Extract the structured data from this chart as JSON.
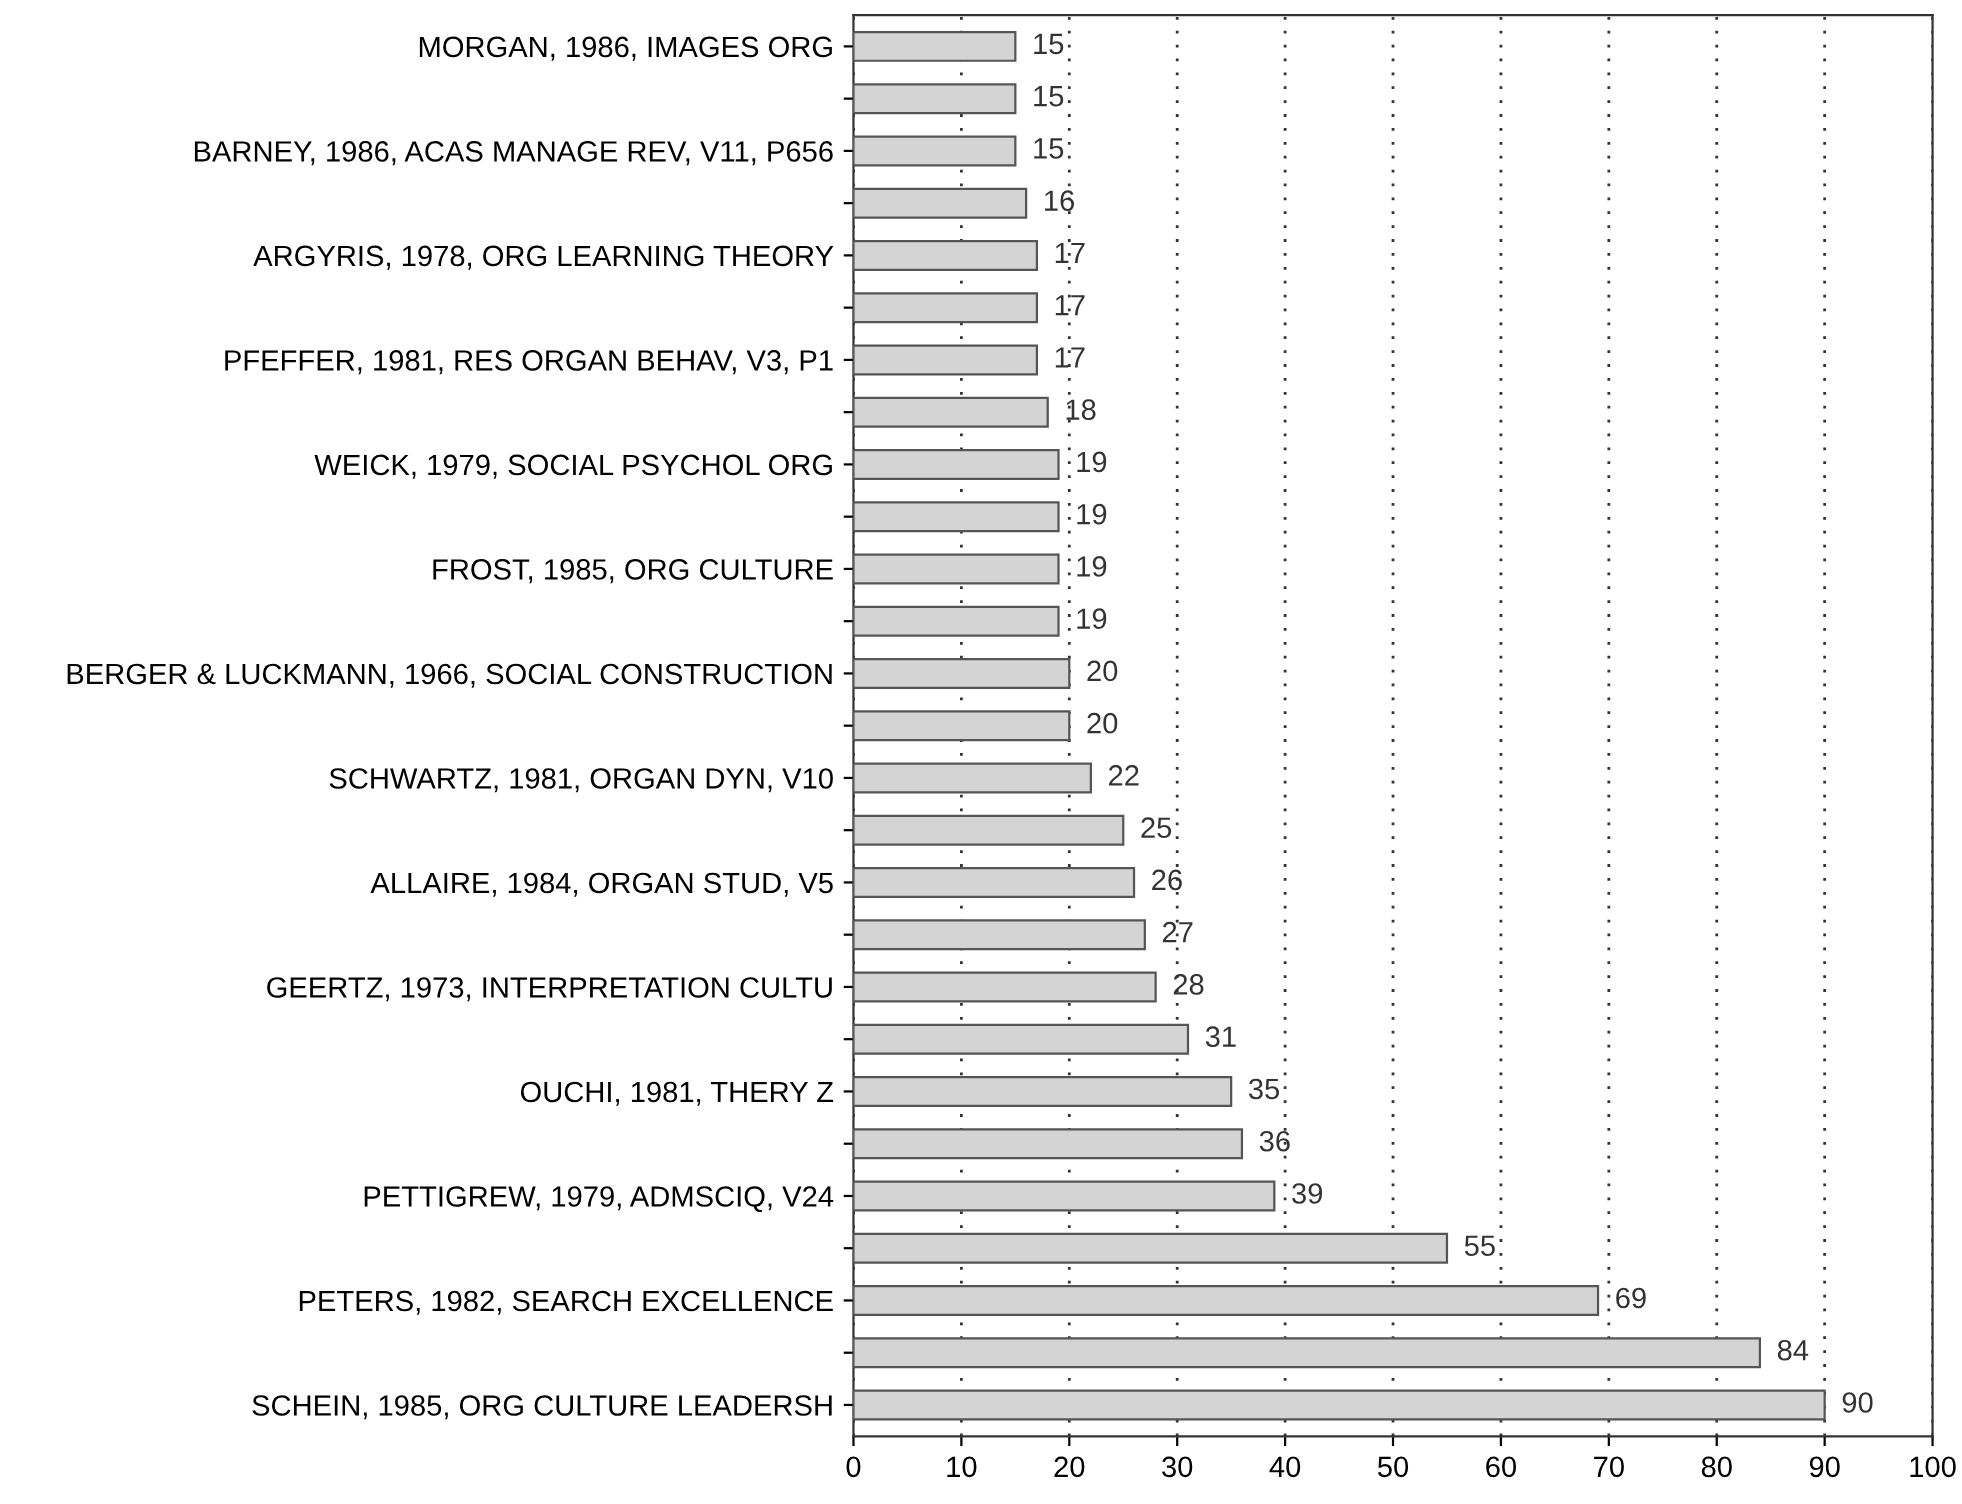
{
  "chart_data": {
    "type": "bar",
    "orientation": "horizontal",
    "categories": [
      "MORGAN, 1986, IMAGES ORG",
      null,
      "BARNEY, 1986, ACAS MANAGE REV, V11, P656",
      null,
      "ARGYRIS, 1978, ORG LEARNING THEORY",
      null,
      "PFEFFER, 1981, RES ORGAN BEHAV, V3, P1",
      null,
      "WEICK, 1979, SOCIAL PSYCHOL ORG",
      null,
      "FROST, 1985, ORG CULTURE",
      null,
      "BERGER & LUCKMANN, 1966, SOCIAL CONSTRUCTION",
      null,
      "SCHWARTZ, 1981, ORGAN DYN, V10",
      null,
      "ALLAIRE, 1984, ORGAN STUD, V5",
      null,
      "GEERTZ, 1973, INTERPRETATION CULTU",
      null,
      "OUCHI, 1981, THERY Z",
      null,
      "PETTIGREW, 1979, ADMSCIQ, V24",
      null,
      "PETERS, 1982, SEARCH EXCELLENCE",
      null,
      "SCHEIN, 1985, ORG CULTURE LEADERSH"
    ],
    "values": [
      15,
      15,
      15,
      16,
      17,
      17,
      17,
      18,
      19,
      19,
      19,
      19,
      20,
      20,
      22,
      25,
      26,
      27,
      28,
      31,
      35,
      36,
      39,
      55,
      69,
      84,
      90
    ],
    "color": "#d4d4d4",
    "data_labels": true,
    "xlim": [
      0,
      100
    ],
    "xticks": [
      0,
      10,
      20,
      30,
      40,
      50,
      60,
      70,
      80,
      90,
      100
    ],
    "grid": "x"
  }
}
